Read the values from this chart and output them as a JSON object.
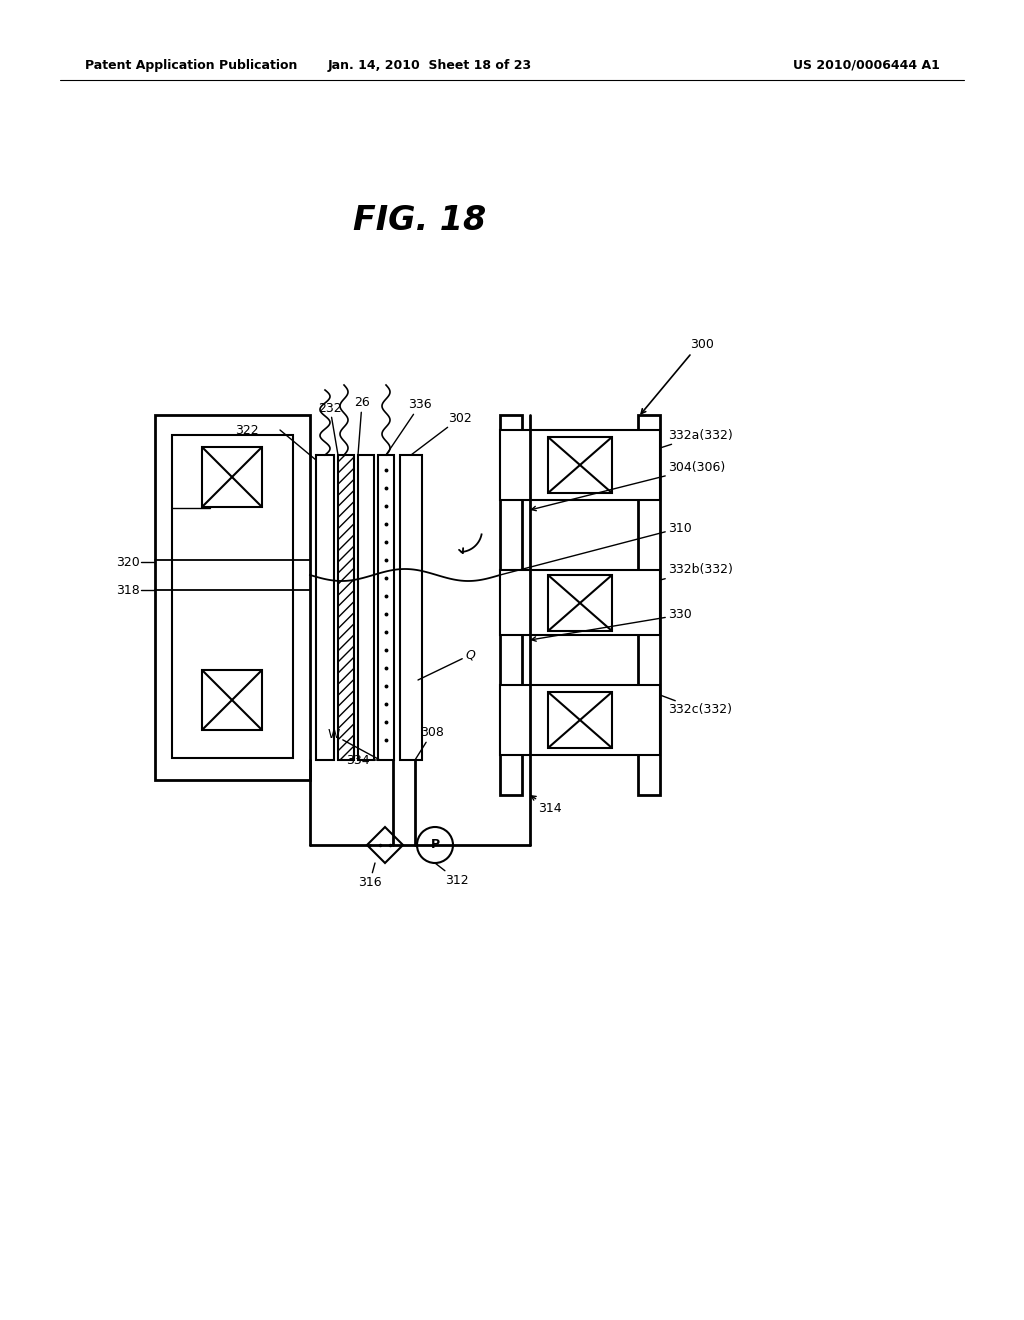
{
  "header_left": "Patent Application Publication",
  "header_mid": "Jan. 14, 2010  Sheet 18 of 23",
  "header_right": "US 2010/0006444 A1",
  "fig_title": "FIG. 18",
  "bg_color": "#ffffff",
  "line_color": "#000000"
}
